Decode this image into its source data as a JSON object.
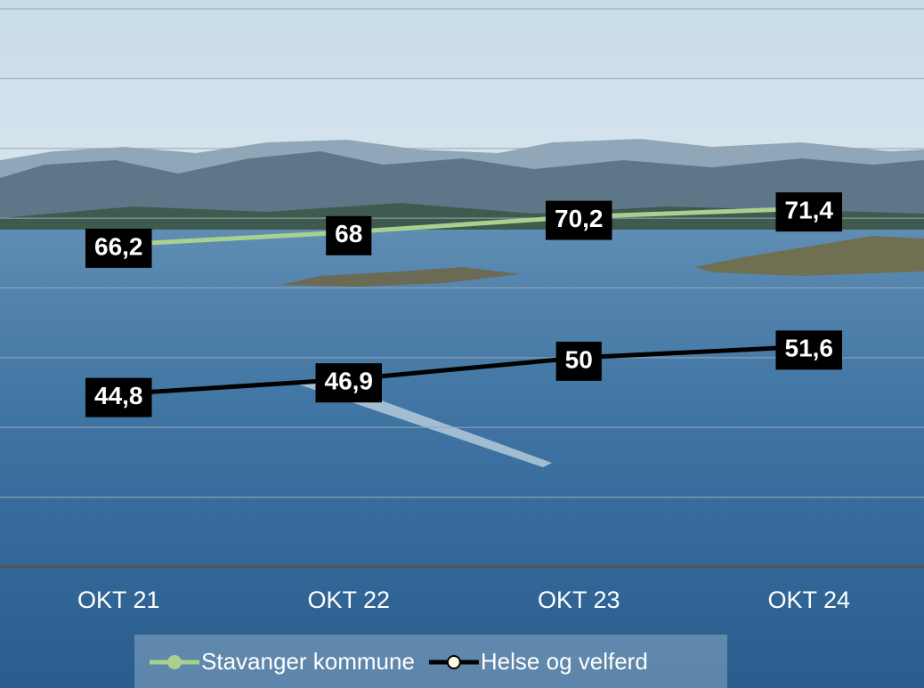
{
  "chart_data": {
    "type": "line",
    "categories": [
      "OKT 21",
      "OKT 22",
      "OKT 23",
      "OKT 24"
    ],
    "series": [
      {
        "name": "Stavanger kommune",
        "color": "#a9d18e",
        "values": [
          66.2,
          68,
          70.2,
          71.4
        ],
        "value_labels": [
          "66,2",
          "68",
          "70,2",
          "71,4"
        ]
      },
      {
        "name": "Helse og velferd",
        "color": "#000000",
        "values": [
          44.8,
          46.9,
          50,
          51.6
        ],
        "value_labels": [
          "44,8",
          "46,9",
          "50",
          "51,6"
        ]
      }
    ],
    "ylim": [
      20,
      100
    ],
    "yticks": [
      30,
      40,
      50,
      60,
      70,
      80,
      90,
      100
    ],
    "grid": true,
    "legend": "bottom"
  }
}
